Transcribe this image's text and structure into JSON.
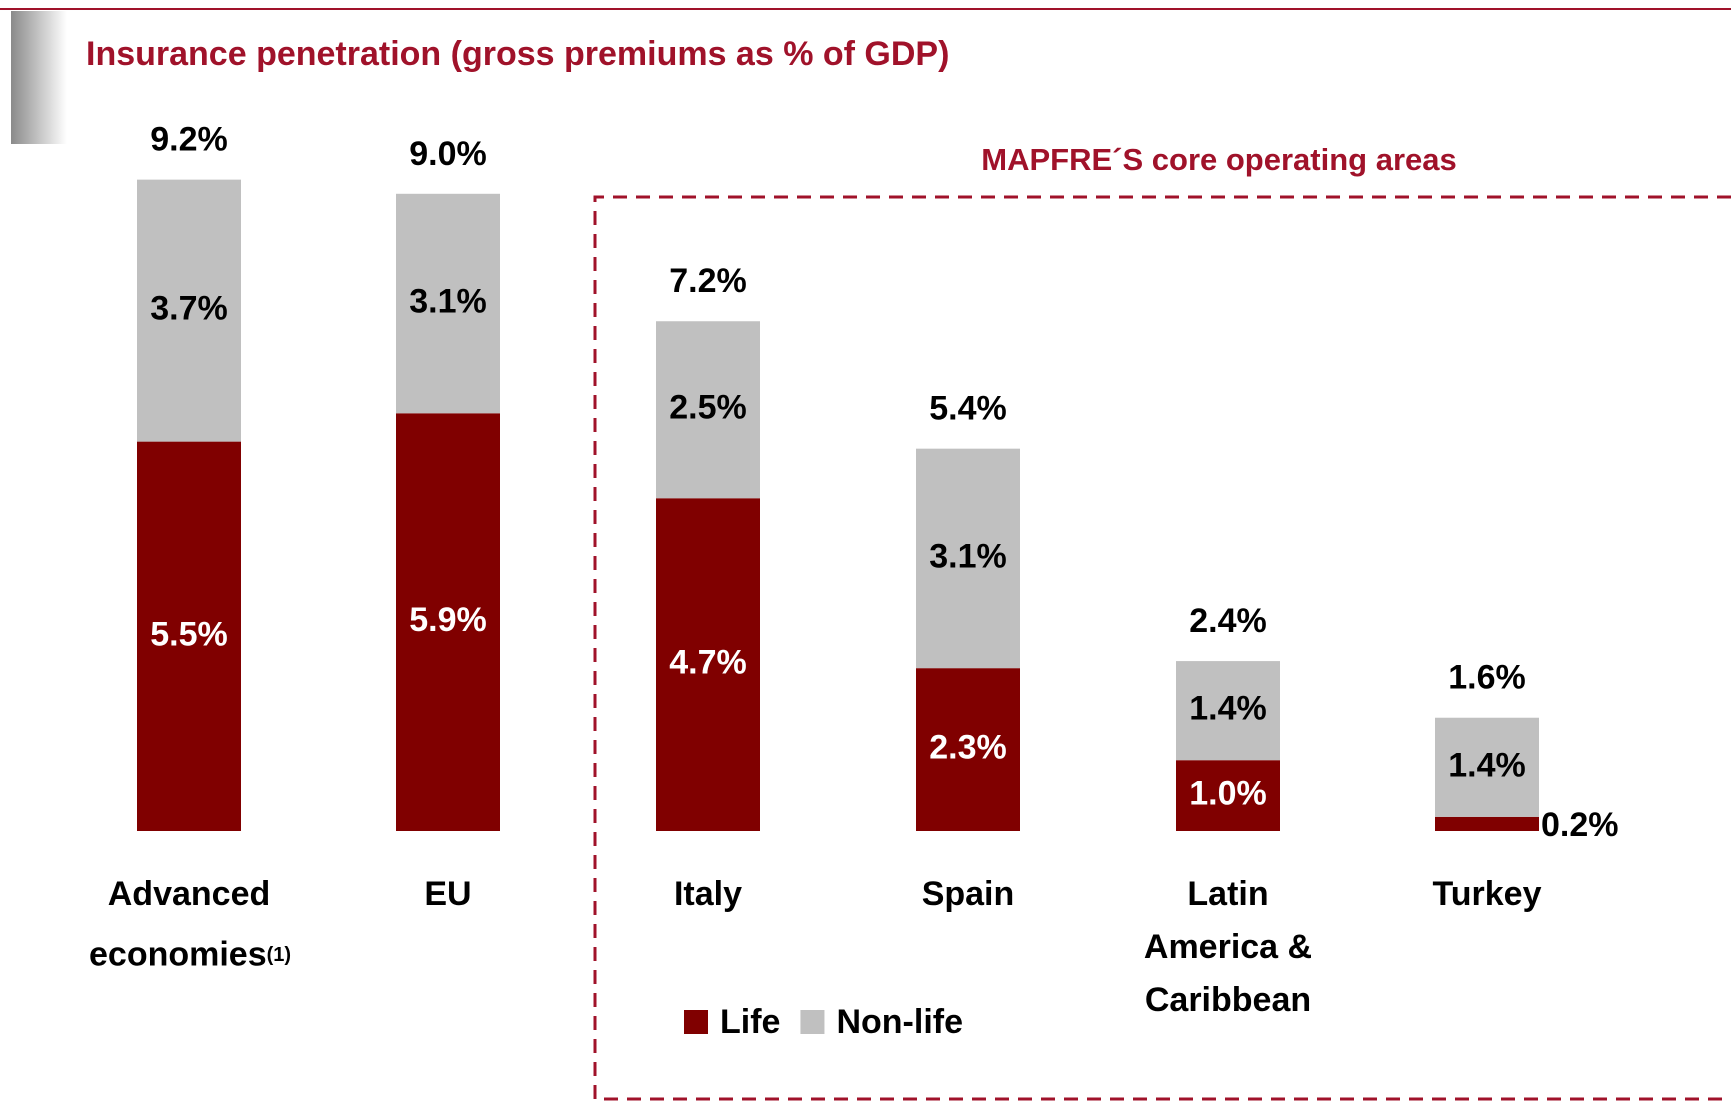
{
  "chart_data": {
    "type": "stacked-bar",
    "title": "Insurance penetration (gross premiums as % of GDP)",
    "annotation": "MAPFRE´S core operating areas",
    "categories": [
      "Advanced economies",
      "EU",
      "Italy",
      "Spain",
      "Latin America & Caribbean",
      "Turkey"
    ],
    "footnote_marks": [
      "(1)",
      null,
      null,
      null,
      null,
      null
    ],
    "series": [
      {
        "name": "Life",
        "color": "#800000",
        "values": [
          5.5,
          5.9,
          4.7,
          2.3,
          1.0,
          0.2
        ],
        "value_labels": [
          "5.5%",
          "5.9%",
          "4.7%",
          "2.3%",
          "1.0%",
          "0.2%"
        ]
      },
      {
        "name": "Non-life",
        "color": "#c0c0c0",
        "values": [
          3.7,
          3.1,
          2.5,
          3.1,
          1.4,
          1.4
        ],
        "value_labels": [
          "3.7%",
          "3.1%",
          "2.5%",
          "3.1%",
          "1.4%",
          "1.4%"
        ]
      }
    ],
    "totals": {
      "values": [
        9.2,
        9.0,
        7.2,
        5.4,
        2.4,
        1.6
      ],
      "value_labels": [
        "9.2%",
        "9.0%",
        "7.2%",
        "5.4%",
        "2.4%",
        "1.6%"
      ]
    }
  }
}
